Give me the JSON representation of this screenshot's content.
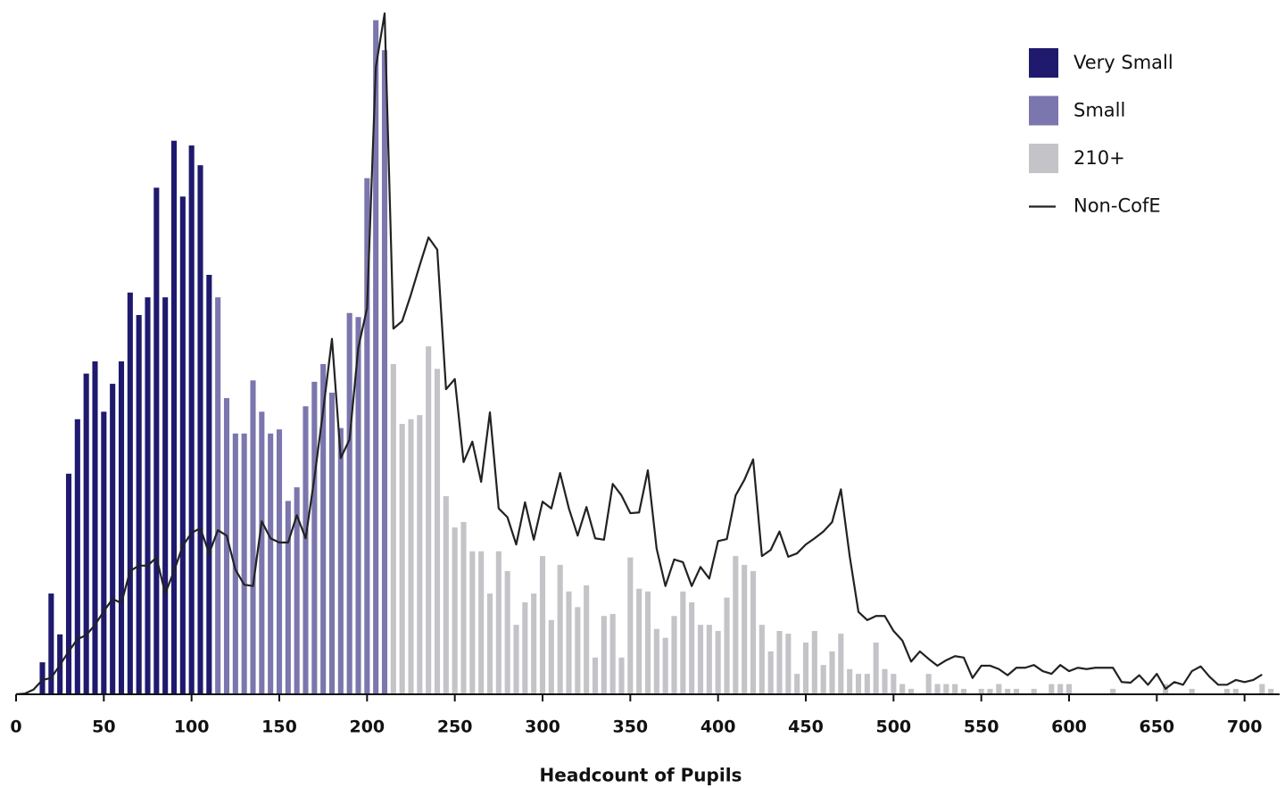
{
  "chart_data": {
    "type": "bar",
    "xlabel": "Headcount of Pupils",
    "xlim": [
      0,
      720
    ],
    "ylim": [
      0,
      100
    ],
    "xticks": [
      0,
      50,
      100,
      150,
      200,
      250,
      300,
      350,
      400,
      450,
      500,
      550,
      600,
      650,
      700
    ],
    "legend": "top-right",
    "series": [
      {
        "name": "Very Small",
        "color": "#1f1a6e",
        "x": [
          15,
          20,
          25,
          30,
          35,
          40,
          45,
          50,
          55,
          60,
          65,
          70,
          75,
          80,
          85,
          90,
          95,
          100,
          105,
          110
        ],
        "values": [
          4.7,
          14.8,
          8.8,
          32.4,
          40.4,
          47.1,
          48.9,
          41.5,
          45.6,
          48.9,
          59.0,
          55.7,
          58.3,
          74.4,
          58.3,
          81.3,
          73.1,
          80.6,
          77.7,
          61.6
        ]
      },
      {
        "name": "Small",
        "color": "#7b76ad",
        "x": [
          115,
          120,
          125,
          130,
          135,
          140,
          145,
          150,
          155,
          160,
          165,
          170,
          175,
          180,
          185,
          190,
          195,
          200,
          205,
          210
        ],
        "values": [
          58.3,
          43.5,
          38.3,
          38.3,
          46.1,
          41.5,
          38.3,
          38.9,
          28.4,
          30.4,
          42.3,
          45.9,
          48.5,
          44.3,
          39.1,
          56.0,
          55.4,
          75.8,
          99.0,
          94.6
        ]
      },
      {
        "name": "210+",
        "color": "#c3c3c8",
        "x": [
          215,
          220,
          225,
          230,
          235,
          240,
          245,
          250,
          255,
          260,
          265,
          270,
          275,
          280,
          285,
          290,
          295,
          300,
          305,
          310,
          315,
          320,
          325,
          330,
          335,
          340,
          345,
          350,
          355,
          360,
          365,
          370,
          375,
          380,
          385,
          390,
          395,
          400,
          405,
          410,
          415,
          420,
          425,
          430,
          435,
          440,
          445,
          450,
          455,
          460,
          465,
          470,
          475,
          480,
          485,
          490,
          495,
          500,
          505,
          510,
          515,
          520,
          525,
          530,
          535,
          540,
          545,
          550,
          555,
          560,
          565,
          570,
          575,
          580,
          585,
          590,
          595,
          600,
          605,
          610,
          615,
          620,
          625,
          630,
          635,
          640,
          645,
          650,
          655,
          660,
          665,
          670,
          675,
          680,
          685,
          690,
          695,
          700,
          705,
          710,
          715
        ],
        "values": [
          48.5,
          39.7,
          40.4,
          41.0,
          51.1,
          47.8,
          29.1,
          24.5,
          25.3,
          21.0,
          21.0,
          14.8,
          21.0,
          18.1,
          10.2,
          13.5,
          14.8,
          20.3,
          10.9,
          19.0,
          15.1,
          12.8,
          16.0,
          5.4,
          11.5,
          11.8,
          5.4,
          20.1,
          15.5,
          15.1,
          9.6,
          8.3,
          11.5,
          15.1,
          13.5,
          10.2,
          10.2,
          9.3,
          14.2,
          20.3,
          19.0,
          18.1,
          10.2,
          6.3,
          9.3,
          8.9,
          3.0,
          7.6,
          9.3,
          4.3,
          6.3,
          8.9,
          3.7,
          3.0,
          3.0,
          7.6,
          3.7,
          3.0,
          1.5,
          0.8,
          0,
          3.0,
          1.5,
          1.5,
          1.5,
          0.8,
          0,
          0.8,
          0.8,
          1.5,
          0.8,
          0.8,
          0,
          0.8,
          0,
          1.5,
          1.5,
          1.5,
          0,
          0,
          0,
          0,
          0.8,
          0,
          0,
          0,
          0,
          0,
          1.5,
          0,
          0,
          0.8,
          0,
          0,
          0,
          0.8,
          0.8,
          0,
          0,
          1.5,
          0.8
        ]
      },
      {
        "name": "Non-CofE",
        "color": "#222222",
        "type": "line",
        "x": [
          0,
          5,
          10,
          15,
          20,
          25,
          30,
          35,
          40,
          45,
          50,
          55,
          60,
          65,
          70,
          75,
          80,
          85,
          90,
          95,
          100,
          105,
          110,
          115,
          120,
          125,
          130,
          135,
          140,
          145,
          150,
          155,
          160,
          165,
          170,
          175,
          180,
          185,
          190,
          195,
          200,
          205,
          210,
          215,
          220,
          225,
          230,
          235,
          240,
          245,
          250,
          255,
          260,
          265,
          270,
          275,
          280,
          285,
          290,
          295,
          300,
          305,
          310,
          315,
          320,
          325,
          330,
          335,
          340,
          345,
          350,
          355,
          360,
          365,
          370,
          375,
          380,
          385,
          390,
          395,
          400,
          405,
          410,
          415,
          420,
          425,
          430,
          435,
          440,
          445,
          450,
          455,
          460,
          465,
          470,
          475,
          480,
          485,
          490,
          495,
          500,
          505,
          510,
          515,
          520,
          525,
          530,
          535,
          540,
          545,
          550,
          555,
          560,
          565,
          570,
          575,
          580,
          585,
          590,
          595,
          600,
          605,
          610,
          615,
          620,
          625,
          630,
          635,
          640,
          645,
          650,
          655,
          660,
          665,
          670,
          675,
          680,
          685,
          690,
          695,
          700,
          705,
          710
        ],
        "values": [
          0,
          0.1,
          0.7,
          2.1,
          2.4,
          4.3,
          6.3,
          8.1,
          8.7,
          10.2,
          12.2,
          14.0,
          13.4,
          18.1,
          18.9,
          18.9,
          20.1,
          14.8,
          18.1,
          21.8,
          23.7,
          24.4,
          20.7,
          24.1,
          23.3,
          18.3,
          16.1,
          15.9,
          25.4,
          22.9,
          22.3,
          22.3,
          26.3,
          22.9,
          31.8,
          41.7,
          52.2,
          34.7,
          37.4,
          50.9,
          56.7,
          92.1,
          100.0,
          53.7,
          54.8,
          58.7,
          63.0,
          67.1,
          65.3,
          44.8,
          46.3,
          34.1,
          37.1,
          31.2,
          41.4,
          27.3,
          26.0,
          22.0,
          28.2,
          22.7,
          28.3,
          27.3,
          32.5,
          27.3,
          23.3,
          27.5,
          22.9,
          22.7,
          30.9,
          29.2,
          26.6,
          26.7,
          32.9,
          21.4,
          15.9,
          19.8,
          19.4,
          15.9,
          18.7,
          17.0,
          22.5,
          22.8,
          29.2,
          31.5,
          34.5,
          20.3,
          21.2,
          23.9,
          20.2,
          20.7,
          22.0,
          22.9,
          23.9,
          25.3,
          30.1,
          20.3,
          12.1,
          10.9,
          11.5,
          11.5,
          9.3,
          7.9,
          4.8,
          6.3,
          5.2,
          4.2,
          5.0,
          5.6,
          5.4,
          2.4,
          4.2,
          4.2,
          3.7,
          2.8,
          3.9,
          3.9,
          4.3,
          3.4,
          3.0,
          4.3,
          3.4,
          3.9,
          3.7,
          3.9,
          3.9,
          3.9,
          1.8,
          1.7,
          2.8,
          1.4,
          3.0,
          0.8,
          1.8,
          1.4,
          3.4,
          4.1,
          2.6,
          1.4,
          1.4,
          2.1,
          1.8,
          2.1,
          2.9
        ]
      }
    ]
  }
}
